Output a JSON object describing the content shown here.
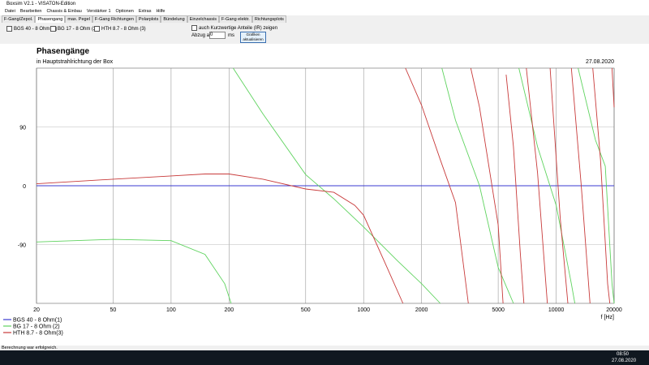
{
  "window": {
    "title": "Boxsim V2.1 - VISATON-Edition",
    "menu": [
      "Datei",
      "Bearbeiten",
      "Chassis & Einbau",
      "Verstärker 1",
      "Optionen",
      "Extras",
      "Hilfe"
    ],
    "tabs": [
      "F-Gang/Zepol.",
      "Phasengang",
      "max. Pegel",
      "F-Gang Richtungen",
      "Polarplots",
      "Bündelung",
      "Einzelchassis",
      "F-Gang elektr.",
      "Richtungsplots"
    ]
  },
  "controls": {
    "checkboxes": [
      "BGS 40 - 8 Ohm (1)",
      "BG 17 - 8 Ohm (2)",
      "HTH 8.7 - 8 Ohm (3)"
    ],
    "ir_option": "auch Kurzwertige Anteile (IR) zeigen",
    "delay_label": "Abzug auf",
    "delay_value": "0",
    "delay_unit": "ms",
    "refresh_button": "Grafiken aktualisieren"
  },
  "chart_data": {
    "type": "line",
    "title": "Phasengänge",
    "subtitle": "in Hauptstrahlrichtung der Box",
    "date": "27.08.2020",
    "x_label": "f [Hz]",
    "log_x": true,
    "xlim": [
      20,
      20000
    ],
    "xticks": [
      20,
      50,
      100,
      200,
      500,
      1000,
      2000,
      5000,
      10000,
      20000
    ],
    "ylim": [
      -180,
      180
    ],
    "yticks": [
      -90,
      0,
      90
    ],
    "grid": true,
    "series": [
      {
        "name": "BGS 40 - 8 Ohm(1)",
        "color": "#3b3bd0",
        "x": [
          20,
          20000
        ],
        "values": [
          0,
          0
        ]
      },
      {
        "name": "BG 17 - 8 Ohm  (2)",
        "color": "#5fd35f",
        "x": [
          20,
          50,
          100,
          150,
          190,
          205,
          207,
          210,
          300,
          500,
          700,
          1000,
          1500,
          2000,
          2500,
          2520,
          2550,
          3000,
          4000,
          5000,
          6000,
          6200,
          6400,
          8000,
          10000,
          12000,
          12500,
          12700,
          13000,
          16000,
          18000,
          19500,
          20000
        ],
        "values": [
          -86,
          -82,
          -84,
          -105,
          -150,
          -180,
          null,
          180,
          110,
          17,
          -20,
          -63,
          -115,
          -150,
          -180,
          null,
          180,
          100,
          0,
          -125,
          -180,
          null,
          180,
          60,
          -30,
          -150,
          -180,
          null,
          180,
          70,
          30,
          -150,
          -180
        ]
      },
      {
        "name": "HTH 8.7 - 8 Ohm(3)",
        "color": "#c83a3a",
        "x": [
          20,
          50,
          100,
          150,
          200,
          300,
          500,
          700,
          900,
          1000,
          1300,
          1600,
          1620,
          1650,
          2000,
          2500,
          3000,
          3500,
          3550,
          3600,
          4000,
          5000,
          5300,
          5350,
          5500,
          6000,
          6500,
          6800,
          6850,
          7000,
          8000,
          9000,
          9100,
          9300,
          10500,
          11500,
          11700,
          12000,
          13500,
          15000,
          15200,
          15500,
          17000,
          18500,
          19000,
          19200,
          19500,
          20000
        ],
        "values": [
          3,
          10,
          15,
          18,
          18,
          10,
          -5,
          -10,
          -30,
          -45,
          -120,
          -180,
          null,
          180,
          123,
          40,
          -26,
          -180,
          null,
          180,
          120,
          -60,
          -180,
          null,
          170,
          60,
          -100,
          -180,
          null,
          180,
          20,
          -180,
          null,
          180,
          -50,
          -180,
          null,
          180,
          0,
          -180,
          null,
          180,
          40,
          -150,
          -180,
          null,
          180,
          120
        ]
      }
    ]
  },
  "status": "Berechnung war erfolgreich.",
  "taskbar": {
    "time": "08:50",
    "date": "27.08.2020"
  }
}
